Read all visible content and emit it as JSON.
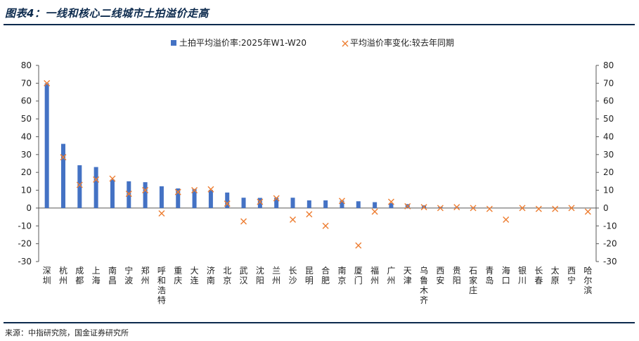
{
  "title": "图表4：一线和核心二线城市土拍溢价走高",
  "source": "来源：中指研究院，国金证券研究所",
  "chart_data": {
    "type": "bar",
    "legend_position": "top-center",
    "grid": false,
    "ylim": [
      -30,
      80
    ],
    "yticks": [
      -30,
      -20,
      -10,
      0,
      10,
      20,
      30,
      40,
      50,
      60,
      70,
      80
    ],
    "y2lim": [
      -30,
      80
    ],
    "y2ticks": [
      -30,
      -20,
      -10,
      0,
      10,
      20,
      30,
      40,
      50,
      60,
      70,
      80
    ],
    "colors": {
      "bars": "#4472c4",
      "markers": "#ed7d31",
      "axis": "#595959"
    },
    "categories": [
      "深圳",
      "杭州",
      "成都",
      "上海",
      "南昌",
      "宁波",
      "郑州",
      "呼和浩特",
      "重庆",
      "大连",
      "济南",
      "北京",
      "武汉",
      "沈阳",
      "兰州",
      "长沙",
      "昆明",
      "合肥",
      "南京",
      "厦门",
      "福州",
      "广州",
      "天津",
      "乌鲁木齐",
      "西安",
      "贵阳",
      "石家庄",
      "青岛",
      "海口",
      "银川",
      "长春",
      "太原",
      "西宁",
      "哈尔滨"
    ],
    "series": [
      {
        "name": "土拍平均溢价率:2025年W1-W20",
        "kind": "bar",
        "values": [
          70,
          36,
          24,
          23,
          16,
          15,
          14.5,
          12.2,
          11,
          10.7,
          10.2,
          8.7,
          5.8,
          5.7,
          5.8,
          5.8,
          4.3,
          4.3,
          4.2,
          3.8,
          3.3,
          2.8,
          2.2,
          1.5,
          0.7,
          0.5,
          0.3,
          0.2,
          0,
          0,
          0,
          0,
          0,
          0
        ]
      },
      {
        "name": "平均溢价率变化:较去年同期",
        "kind": "scatter",
        "values": [
          70,
          28.5,
          13,
          16,
          16.5,
          8,
          10,
          -3,
          9,
          10,
          10.5,
          2.5,
          -7.5,
          3.5,
          5.5,
          -6.5,
          -3.5,
          -10,
          4,
          -21,
          -2,
          3.5,
          1,
          0.5,
          0,
          0.5,
          0,
          -0.5,
          -6.5,
          0,
          -0.5,
          -0.5,
          0,
          -2
        ]
      }
    ]
  }
}
